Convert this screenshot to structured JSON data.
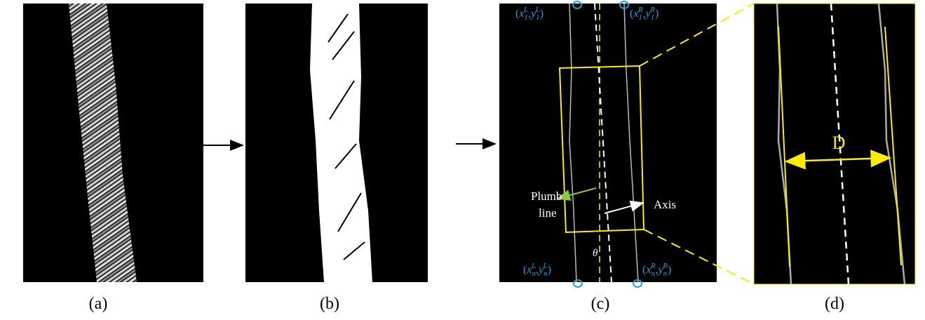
{
  "panels": [
    {
      "caption": "(a)"
    },
    {
      "caption": "(b)"
    },
    {
      "caption": "(c)"
    },
    {
      "caption": "(d)"
    }
  ],
  "panel_c": {
    "coord_labels": [
      {
        "open": "(",
        "x": "x",
        "x_sub": "1",
        "x_sup": "L",
        "sep": ",",
        "y": "y",
        "y_sub": "1",
        "y_sup": "L",
        "close": ")"
      },
      {
        "open": "(",
        "x": "x",
        "x_sub": "1",
        "x_sup": "R",
        "sep": ",",
        "y": "y",
        "y_sub": "1",
        "y_sup": "R",
        "close": ")"
      },
      {
        "open": "(",
        "x": "x",
        "x_sub": "n",
        "x_sup": "L",
        "sep": ",",
        "y": "y",
        "y_sub": "n",
        "y_sup": "L",
        "close": ")"
      },
      {
        "open": "(",
        "x": "x",
        "x_sub": "n",
        "x_sup": "R",
        "sep": ",",
        "y": "y",
        "y_sub": "n",
        "y_sup": "R",
        "close": ")"
      }
    ],
    "plumb_line_label": [
      "Plumb",
      "line"
    ],
    "axis_label": "Axis",
    "angle_label": "θ"
  },
  "panel_d": {
    "diameter_label": "D"
  }
}
